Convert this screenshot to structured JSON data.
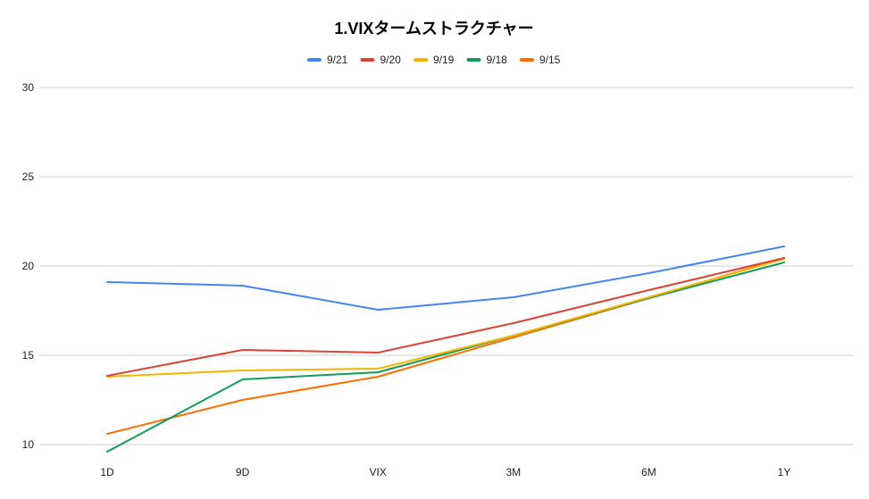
{
  "chart_data": {
    "type": "line",
    "title": "1.VIXタームストラクチャー",
    "xlabel": "",
    "ylabel": "",
    "categories": [
      "1D",
      "9D",
      "VIX",
      "3M",
      "6M",
      "1Y"
    ],
    "ylim": [
      10,
      30
    ],
    "yticks": [
      10,
      15,
      20,
      25,
      30
    ],
    "grid": true,
    "legend_position": "top",
    "series": [
      {
        "name": "9/21",
        "color": "#4285f4",
        "values": [
          19.1,
          18.9,
          17.55,
          18.25,
          19.6,
          21.1
        ]
      },
      {
        "name": "9/20",
        "color": "#db4437",
        "values": [
          13.85,
          15.3,
          15.15,
          16.8,
          18.65,
          20.45
        ]
      },
      {
        "name": "9/19",
        "color": "#f4b400",
        "values": [
          13.8,
          14.15,
          14.25,
          16.1,
          18.25,
          20.4
        ]
      },
      {
        "name": "9/18",
        "color": "#0f9d58",
        "values": [
          9.6,
          13.65,
          14.05,
          16.1,
          18.2,
          20.2
        ]
      },
      {
        "name": "9/15",
        "color": "#ff6d01",
        "values": [
          10.6,
          12.5,
          13.8,
          16.0,
          18.2,
          20.45
        ]
      }
    ]
  }
}
